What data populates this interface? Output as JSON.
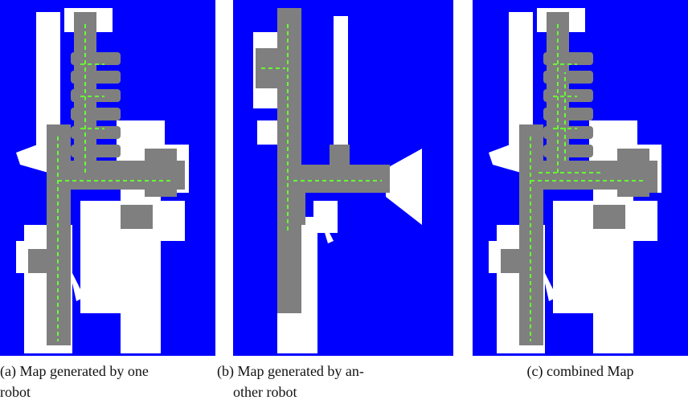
{
  "figure": {
    "panels": [
      {
        "caption_lines": [
          "(a) Map generated by one",
          "robot"
        ]
      },
      {
        "caption_lines": [
          "(b) Map generated by an-",
          "other robot"
        ]
      },
      {
        "caption_lines": [
          "(c) combined Map"
        ]
      }
    ]
  }
}
